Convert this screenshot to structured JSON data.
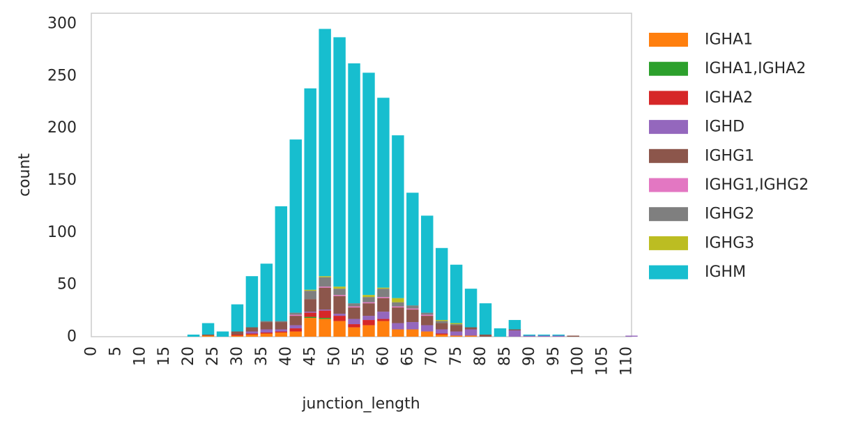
{
  "chart_data": {
    "type": "bar",
    "stacked": true,
    "xlabel": "junction_length",
    "ylabel": "count",
    "xlim": [
      0,
      111
    ],
    "ylim": [
      0,
      310
    ],
    "xticks": [
      0,
      5,
      10,
      15,
      20,
      25,
      30,
      35,
      40,
      45,
      50,
      55,
      60,
      65,
      70,
      75,
      80,
      85,
      90,
      95,
      100,
      105,
      110
    ],
    "yticks": [
      0,
      50,
      100,
      150,
      200,
      250,
      300
    ],
    "grid": false,
    "legend_position": "outside-right",
    "x": [
      21,
      24,
      27,
      30,
      33,
      36,
      39,
      42,
      45,
      48,
      51,
      54,
      57,
      60,
      63,
      66,
      69,
      72,
      75,
      78,
      81,
      84,
      87,
      90,
      93,
      96,
      99,
      111
    ],
    "series": [
      {
        "name": "IGHA1",
        "color": "#ff7f0e",
        "values": [
          0,
          1,
          0,
          1,
          2,
          3,
          4,
          5,
          18,
          17,
          15,
          9,
          11,
          15,
          7,
          7,
          5,
          2,
          1,
          1,
          0,
          0,
          0,
          0,
          0,
          0,
          0,
          0
        ]
      },
      {
        "name": "IGHA1,IGHA2",
        "color": "#2ca02c",
        "values": [
          0,
          0,
          0,
          0,
          0,
          0,
          0,
          0,
          1,
          1,
          0,
          0,
          0,
          0,
          0,
          0,
          0,
          0,
          0,
          0,
          0,
          0,
          0,
          0,
          0,
          0,
          0,
          0
        ]
      },
      {
        "name": "IGHA2",
        "color": "#d62728",
        "values": [
          0,
          0,
          0,
          1,
          1,
          1,
          1,
          3,
          4,
          7,
          5,
          3,
          5,
          2,
          0,
          0,
          0,
          1,
          0,
          0,
          0,
          0,
          0,
          0,
          0,
          0,
          0,
          0
        ]
      },
      {
        "name": "IGHD",
        "color": "#9467bd",
        "values": [
          0,
          0,
          0,
          0,
          2,
          3,
          2,
          3,
          1,
          1,
          2,
          5,
          4,
          7,
          6,
          7,
          6,
          4,
          4,
          6,
          0,
          0,
          6,
          1,
          1,
          1,
          0,
          1
        ]
      },
      {
        "name": "IGHG1",
        "color": "#8c564b",
        "values": [
          0,
          1,
          0,
          3,
          4,
          7,
          7,
          9,
          12,
          21,
          17,
          11,
          12,
          13,
          15,
          12,
          9,
          6,
          6,
          2,
          2,
          0,
          1,
          0,
          0,
          0,
          1,
          0
        ]
      },
      {
        "name": "IGHG1,IGHG2",
        "color": "#e377c2",
        "values": [
          0,
          0,
          0,
          0,
          0,
          0,
          0,
          1,
          0,
          1,
          1,
          1,
          1,
          1,
          1,
          1,
          1,
          0,
          0,
          0,
          0,
          0,
          0,
          0,
          0,
          0,
          0,
          0
        ]
      },
      {
        "name": "IGHG2",
        "color": "#7f7f7f",
        "values": [
          0,
          0,
          0,
          0,
          0,
          1,
          1,
          2,
          8,
          9,
          6,
          3,
          5,
          8,
          4,
          3,
          2,
          2,
          1,
          0,
          0,
          0,
          0,
          0,
          0,
          0,
          0,
          0
        ]
      },
      {
        "name": "IGHG3",
        "color": "#bcbd22",
        "values": [
          0,
          0,
          0,
          0,
          0,
          0,
          0,
          0,
          1,
          1,
          2,
          0,
          2,
          1,
          4,
          0,
          0,
          1,
          1,
          0,
          0,
          0,
          0,
          0,
          0,
          0,
          0,
          0
        ]
      },
      {
        "name": "IGHM",
        "color": "#17becf",
        "values": [
          2,
          11,
          5,
          26,
          49,
          55,
          110,
          166,
          193,
          237,
          239,
          230,
          213,
          182,
          156,
          108,
          93,
          69,
          56,
          37,
          30,
          8,
          9,
          1,
          1,
          1,
          0,
          0
        ]
      }
    ]
  }
}
